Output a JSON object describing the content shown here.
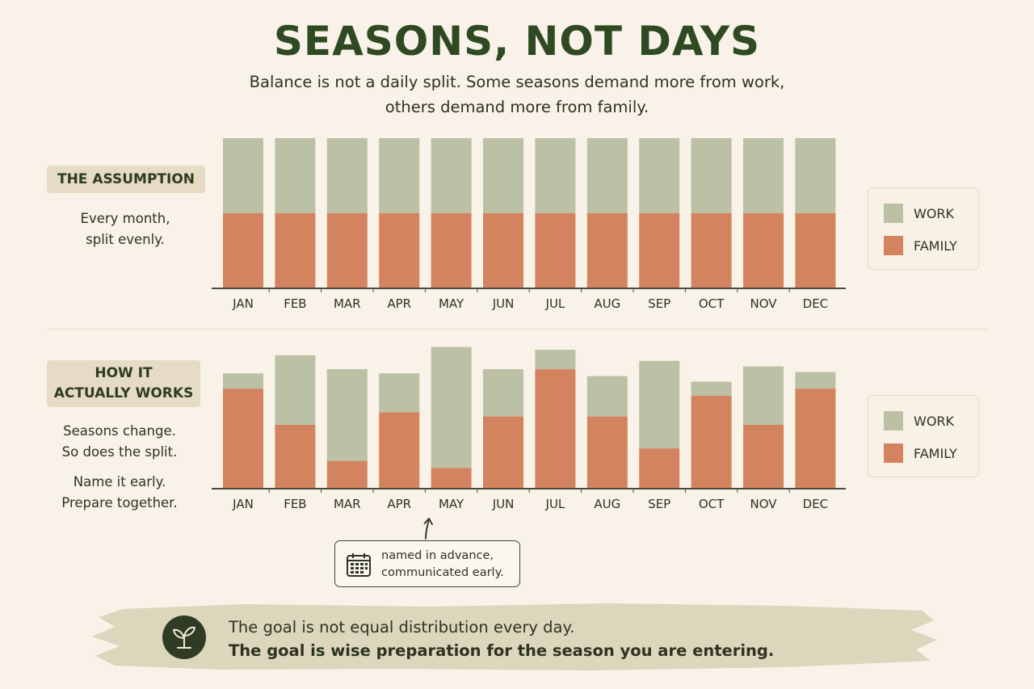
{
  "title": "SEASONS, NOT DAYS",
  "subtitle": {
    "line1": "Balance is not a daily split. Some seasons demand more from work,",
    "line2": "others demand more from family."
  },
  "colors": {
    "work": "#bcc0a4",
    "family": "#d4835f",
    "title": "#2f4a22",
    "tag_bg": "#e6dcc6",
    "background": "#f8f2e9",
    "banner": "#dcd6bc",
    "icon_bg": "#2f3b24"
  },
  "assumption": {
    "tag": "THE ASSUMPTION",
    "text_line1": "Every month,",
    "text_line2": "split evenly."
  },
  "actual": {
    "tag_line1": "HOW IT",
    "tag_line2": "ACTUALLY WORKS",
    "text1_line1": "Seasons change.",
    "text1_line2": "So does the split.",
    "text2_line1": "Name it early.",
    "text2_line2": "Prepare together."
  },
  "legend": {
    "work": "WORK",
    "family": "FAMILY"
  },
  "callout": {
    "icon": "calendar-icon",
    "line1": "named in advance,",
    "line2": "communicated early."
  },
  "goal": {
    "icon": "sprout-icon",
    "line1": "The goal is not equal distribution every day.",
    "line2": "The goal is wise preparation for the season you are entering."
  },
  "chart_data": [
    {
      "type": "bar",
      "stacked": true,
      "categories": [
        "JAN",
        "FEB",
        "MAR",
        "APR",
        "MAY",
        "JUN",
        "JUL",
        "AUG",
        "SEP",
        "OCT",
        "NOV",
        "DEC"
      ],
      "series": [
        {
          "name": "FAMILY",
          "values": [
            50,
            50,
            50,
            50,
            50,
            50,
            50,
            50,
            50,
            50,
            50,
            50
          ]
        },
        {
          "name": "WORK",
          "values": [
            50,
            50,
            50,
            50,
            50,
            50,
            50,
            50,
            50,
            50,
            50,
            50
          ]
        }
      ],
      "ylim": [
        0,
        100
      ],
      "grid": false,
      "legend": "right"
    },
    {
      "type": "bar",
      "stacked": true,
      "categories": [
        "JAN",
        "FEB",
        "MAR",
        "APR",
        "MAY",
        "JUN",
        "JUL",
        "AUG",
        "SEP",
        "OCT",
        "NOV",
        "DEC"
      ],
      "series": [
        {
          "name": "FAMILY",
          "values": [
            72,
            46,
            20,
            55,
            15,
            52,
            86,
            52,
            29,
            67,
            46,
            72
          ]
        },
        {
          "name": "WORK",
          "values": [
            11,
            50,
            66,
            28,
            87,
            34,
            14,
            29,
            63,
            10,
            42,
            12
          ]
        }
      ],
      "ylim": [
        0,
        100
      ],
      "grid": false,
      "legend": "right",
      "annotation": {
        "category": "MAY",
        "text": "named in advance, communicated early."
      }
    }
  ]
}
